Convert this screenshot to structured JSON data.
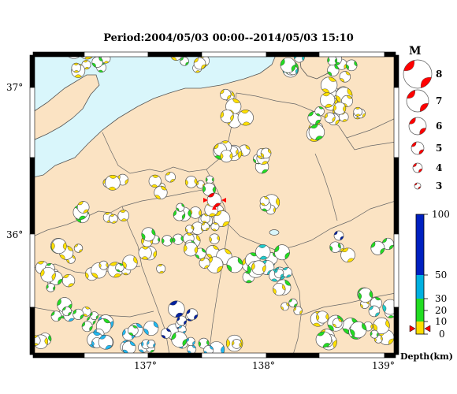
{
  "title": "Period:2004/05/03 00:00--2014/05/03 15:10",
  "axes": {
    "lon_ticks": [
      "137°",
      "138°",
      "139°"
    ],
    "lat_ticks": [
      "37°",
      "36°"
    ]
  },
  "magnitude_legend": {
    "heading": "M",
    "levels": [
      "8",
      "7",
      "6",
      "5",
      "4",
      "3"
    ]
  },
  "depth_legend": {
    "heading": "Depth(km)",
    "ticks": [
      "100",
      "50",
      "30",
      "20",
      "10",
      "0"
    ],
    "colors": [
      "#0000cc",
      "#00aadd",
      "#22dd22",
      "#ffdd00",
      "#ff8800",
      "#ff0000"
    ]
  },
  "colors": {
    "land": "#fbe3c3",
    "sea": "#d9f6fb",
    "shallow": "#ffe000",
    "mid": "#22dd22",
    "deep": "#22b8f0",
    "cyan": "#20cccc",
    "navy": "#0020a0",
    "main": "#ff0000"
  }
}
